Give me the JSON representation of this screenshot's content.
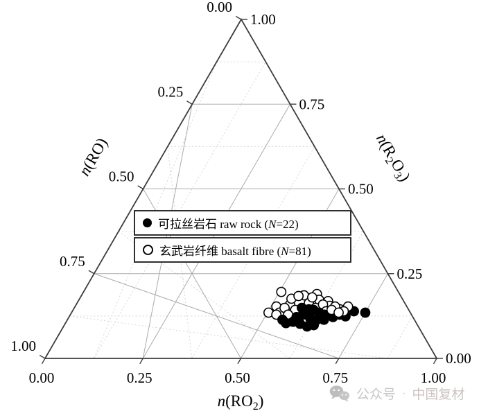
{
  "figure_background": "#ffffff",
  "legend": {
    "items": [
      {
        "marker": "filled-circle",
        "cjk": "可拉丝岩石",
        "en_pre": " raw rock (",
        "n_var": "N",
        "en_post": "=22)"
      },
      {
        "marker": "open-circle",
        "cjk": "玄武岩纤维",
        "en_pre": " basalt fibre (",
        "n_var": "N",
        "en_post": "=81)"
      }
    ]
  },
  "watermark": {
    "icon": "wechat-icon",
    "text_1": "公众号",
    "separator": "·",
    "text_2": "中国复材"
  },
  "chart_data": {
    "type": "scatter",
    "subtype": "ternary",
    "axes": {
      "bottom": {
        "label": "n(RO2)",
        "label_parts": [
          {
            "t": "n",
            "italic": true
          },
          {
            "t": "(RO"
          },
          {
            "t": "2",
            "sub": true
          },
          {
            "t": ")"
          }
        ],
        "ticks": [
          "0.00",
          "0.25",
          "0.50",
          "0.75",
          "1.00"
        ],
        "range": [
          0,
          1
        ]
      },
      "left": {
        "label": "n(RO)",
        "label_parts": [
          {
            "t": "n",
            "italic": true
          },
          {
            "t": "(RO)"
          }
        ],
        "ticks": [
          "0.00",
          "0.25",
          "0.50",
          "0.75",
          "1.00"
        ],
        "range": [
          0,
          1
        ]
      },
      "right": {
        "label": "n(R2O3)",
        "label_parts": [
          {
            "t": "n",
            "italic": true
          },
          {
            "t": "(R"
          },
          {
            "t": "2",
            "sub": true
          },
          {
            "t": "O"
          },
          {
            "t": "3",
            "sub": true
          },
          {
            "t": ")"
          }
        ],
        "ticks": [
          "1.00",
          "0.75",
          "0.50",
          "0.25",
          "0.00"
        ],
        "range": [
          0,
          1
        ]
      }
    },
    "grid": {
      "major_step": 0.25,
      "major_style": "solid",
      "major_color": "#ababab",
      "minor_step": 0.125,
      "minor_style": "dotted",
      "minor_color": "#d6d6d6"
    },
    "edge_color": "#3c3c3c",
    "series": [
      {
        "name": "可拉丝岩石 raw rock",
        "N": 22,
        "marker": "filled-circle",
        "fill": "#000000",
        "stroke": "#000000",
        "points_ro2_r2o3": [
          [
            0.581,
            0.149
          ],
          [
            0.601,
            0.145
          ],
          [
            0.614,
            0.143
          ],
          [
            0.632,
            0.135
          ],
          [
            0.648,
            0.129
          ],
          [
            0.674,
            0.122
          ],
          [
            0.688,
            0.129
          ],
          [
            0.705,
            0.124
          ],
          [
            0.579,
            0.108
          ],
          [
            0.6,
            0.102
          ],
          [
            0.622,
            0.094
          ],
          [
            0.637,
            0.098
          ],
          [
            0.563,
            0.104
          ],
          [
            0.549,
            0.114
          ],
          [
            0.581,
            0.122
          ],
          [
            0.594,
            0.129
          ],
          [
            0.618,
            0.118
          ],
          [
            0.637,
            0.114
          ],
          [
            0.655,
            0.114
          ],
          [
            0.662,
            0.135
          ],
          [
            0.719,
            0.139
          ],
          [
            0.75,
            0.135
          ]
        ]
      },
      {
        "name": "玄武岩纤维 basalt fibre",
        "N": 81,
        "marker": "open-circle",
        "fill": "#ffffff",
        "stroke": "#000000",
        "note": "81 points heavily overlapped; approximate visible positions listed",
        "draw_on_top_count": 6,
        "points_ro2_r2o3": [
          [
            0.505,
            0.196
          ],
          [
            0.503,
            0.135
          ],
          [
            0.514,
            0.153
          ],
          [
            0.531,
            0.135
          ],
          [
            0.546,
            0.159
          ],
          [
            0.541,
            0.176
          ],
          [
            0.568,
            0.186
          ],
          [
            0.599,
            0.19
          ],
          [
            0.613,
            0.173
          ],
          [
            0.638,
            0.169
          ],
          [
            0.649,
            0.155
          ],
          [
            0.537,
            0.149
          ],
          [
            0.567,
            0.143
          ],
          [
            0.592,
            0.163
          ],
          [
            0.616,
            0.149
          ],
          [
            0.555,
            0.184
          ],
          [
            0.592,
            0.18
          ],
          [
            0.63,
            0.159
          ],
          [
            0.595,
            0.139
          ],
          [
            0.556,
            0.129
          ],
          [
            0.526,
            0.129
          ],
          [
            0.648,
            0.139
          ],
          [
            0.697,
            0.153
          ],
          [
            0.68,
            0.145
          ],
          [
            0.664,
            0.153
          ],
          [
            0.693,
            0.139
          ],
          [
            0.66,
            0.143
          ],
          [
            0.682,
            0.135
          ]
        ]
      }
    ]
  }
}
